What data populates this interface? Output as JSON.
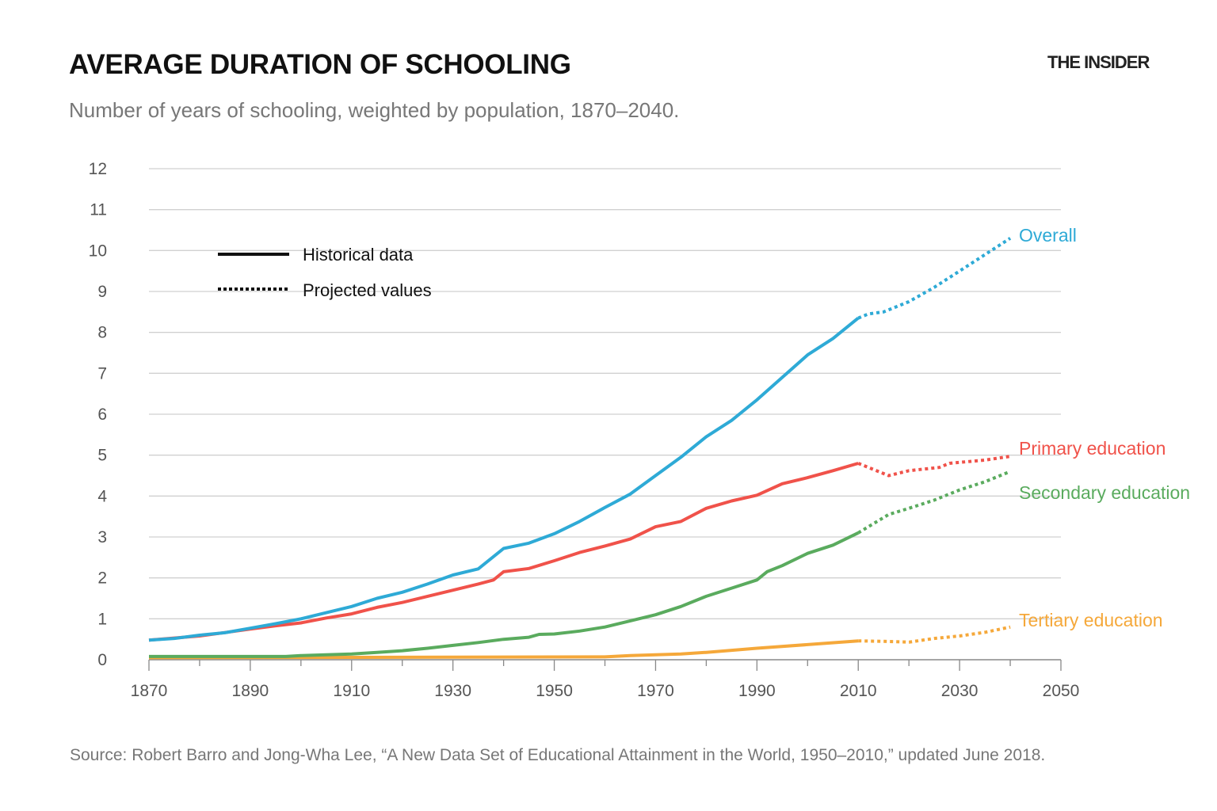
{
  "header": {
    "title": "AVERAGE DURATION OF SCHOOLING",
    "subtitle": "Number of years of schooling, weighted by population, 1870–2040.",
    "brand": "THE INSIDER"
  },
  "footer": {
    "source": "Source: Robert Barro and Jong-Wha Lee, “A New Data Set of Educational Attainment in the World, 1950–2010,” updated June 2018."
  },
  "chart_data": {
    "type": "line",
    "title": "AVERAGE DURATION OF SCHOOLING",
    "xlabel": "",
    "ylabel": "",
    "xlim": [
      1870,
      2050
    ],
    "ylim": [
      0,
      12
    ],
    "x_ticks": [
      "1870",
      "1890",
      "1910",
      "1930",
      "1950",
      "1970",
      "1990",
      "2010",
      "2030",
      "2050"
    ],
    "y_ticks": [
      "0",
      "1",
      "2",
      "3",
      "4",
      "5",
      "6",
      "7",
      "8",
      "9",
      "10",
      "11",
      "12"
    ],
    "grid": true,
    "legend": {
      "placement": "top-left",
      "items": [
        {
          "label": "Historical data",
          "style": "solid"
        },
        {
          "label": "Projected values",
          "style": "dotted"
        }
      ]
    },
    "series": [
      {
        "name": "Overall",
        "color": "#2eaad6",
        "historical": [
          [
            1870,
            0.48
          ],
          [
            1875,
            0.52
          ],
          [
            1880,
            0.6
          ],
          [
            1885,
            0.66
          ],
          [
            1890,
            0.77
          ],
          [
            1895,
            0.88
          ],
          [
            1900,
            1.0
          ],
          [
            1905,
            1.15
          ],
          [
            1910,
            1.3
          ],
          [
            1915,
            1.5
          ],
          [
            1920,
            1.65
          ],
          [
            1925,
            1.85
          ],
          [
            1930,
            2.07
          ],
          [
            1935,
            2.22
          ],
          [
            1940,
            2.72
          ],
          [
            1945,
            2.85
          ],
          [
            1950,
            3.08
          ],
          [
            1955,
            3.38
          ],
          [
            1960,
            3.72
          ],
          [
            1965,
            4.05
          ],
          [
            1970,
            4.5
          ],
          [
            1975,
            4.95
          ],
          [
            1980,
            5.45
          ],
          [
            1985,
            5.85
          ],
          [
            1990,
            6.35
          ],
          [
            1995,
            6.9
          ],
          [
            2000,
            7.45
          ],
          [
            2005,
            7.85
          ],
          [
            2010,
            8.35
          ]
        ],
        "projected": [
          [
            2010,
            8.35
          ],
          [
            2012,
            8.45
          ],
          [
            2015,
            8.5
          ],
          [
            2020,
            8.75
          ],
          [
            2025,
            9.1
          ],
          [
            2030,
            9.5
          ],
          [
            2035,
            9.9
          ],
          [
            2040,
            10.3
          ]
        ]
      },
      {
        "name": "Primary education",
        "color": "#f0524a",
        "historical": [
          [
            1870,
            0.48
          ],
          [
            1880,
            0.58
          ],
          [
            1890,
            0.75
          ],
          [
            1895,
            0.83
          ],
          [
            1900,
            0.9
          ],
          [
            1905,
            1.02
          ],
          [
            1910,
            1.12
          ],
          [
            1915,
            1.28
          ],
          [
            1920,
            1.4
          ],
          [
            1925,
            1.55
          ],
          [
            1930,
            1.7
          ],
          [
            1935,
            1.85
          ],
          [
            1938,
            1.95
          ],
          [
            1940,
            2.15
          ],
          [
            1945,
            2.23
          ],
          [
            1950,
            2.42
          ],
          [
            1955,
            2.62
          ],
          [
            1960,
            2.78
          ],
          [
            1965,
            2.95
          ],
          [
            1970,
            3.25
          ],
          [
            1975,
            3.38
          ],
          [
            1980,
            3.7
          ],
          [
            1985,
            3.88
          ],
          [
            1990,
            4.02
          ],
          [
            1995,
            4.3
          ],
          [
            2000,
            4.45
          ],
          [
            2005,
            4.62
          ],
          [
            2010,
            4.8
          ]
        ],
        "projected": [
          [
            2010,
            4.8
          ],
          [
            2016,
            4.5
          ],
          [
            2020,
            4.62
          ],
          [
            2026,
            4.7
          ],
          [
            2028,
            4.8
          ],
          [
            2035,
            4.88
          ],
          [
            2040,
            4.97
          ]
        ]
      },
      {
        "name": "Secondary education",
        "color": "#5aab5e",
        "historical": [
          [
            1870,
            0.08
          ],
          [
            1897,
            0.08
          ],
          [
            1900,
            0.1
          ],
          [
            1905,
            0.12
          ],
          [
            1910,
            0.14
          ],
          [
            1915,
            0.18
          ],
          [
            1920,
            0.22
          ],
          [
            1925,
            0.28
          ],
          [
            1930,
            0.35
          ],
          [
            1935,
            0.42
          ],
          [
            1940,
            0.5
          ],
          [
            1945,
            0.55
          ],
          [
            1947,
            0.62
          ],
          [
            1950,
            0.63
          ],
          [
            1955,
            0.7
          ],
          [
            1960,
            0.8
          ],
          [
            1965,
            0.95
          ],
          [
            1970,
            1.1
          ],
          [
            1975,
            1.3
          ],
          [
            1980,
            1.55
          ],
          [
            1985,
            1.75
          ],
          [
            1990,
            1.95
          ],
          [
            1992,
            2.15
          ],
          [
            1995,
            2.3
          ],
          [
            2000,
            2.6
          ],
          [
            2005,
            2.8
          ],
          [
            2010,
            3.1
          ]
        ],
        "projected": [
          [
            2010,
            3.1
          ],
          [
            2016,
            3.55
          ],
          [
            2020,
            3.7
          ],
          [
            2025,
            3.9
          ],
          [
            2030,
            4.15
          ],
          [
            2035,
            4.35
          ],
          [
            2040,
            4.6
          ]
        ]
      },
      {
        "name": "Tertiary education",
        "color": "#f5a83a",
        "historical": [
          [
            1870,
            0.05
          ],
          [
            1960,
            0.07
          ],
          [
            1965,
            0.1
          ],
          [
            1970,
            0.12
          ],
          [
            1975,
            0.14
          ],
          [
            1980,
            0.18
          ],
          [
            1990,
            0.28
          ],
          [
            2000,
            0.37
          ],
          [
            2010,
            0.46
          ]
        ],
        "projected": [
          [
            2010,
            0.46
          ],
          [
            2015,
            0.45
          ],
          [
            2020,
            0.43
          ],
          [
            2025,
            0.52
          ],
          [
            2030,
            0.58
          ],
          [
            2035,
            0.67
          ],
          [
            2040,
            0.8
          ]
        ]
      }
    ]
  }
}
